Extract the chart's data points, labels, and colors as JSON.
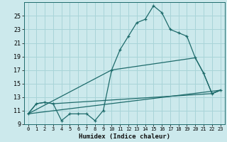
{
  "xlabel": "Humidex (Indice chaleur)",
  "bg_color": "#cce9ec",
  "grid_color": "#a8d4d8",
  "line_color": "#1e6b6b",
  "xlim": [
    -0.5,
    23.5
  ],
  "ylim": [
    9,
    27
  ],
  "yticks": [
    9,
    11,
    13,
    15,
    17,
    19,
    21,
    23,
    25
  ],
  "xticks": [
    0,
    1,
    2,
    3,
    4,
    5,
    6,
    7,
    8,
    9,
    10,
    11,
    12,
    13,
    14,
    15,
    16,
    17,
    18,
    19,
    20,
    21,
    22,
    23
  ],
  "line1_x": [
    0,
    1,
    2,
    3,
    4,
    5,
    6,
    7,
    8,
    9,
    10,
    11,
    12,
    13,
    14,
    15,
    16,
    17,
    18,
    19,
    20,
    21,
    22,
    23
  ],
  "line1_y": [
    10.5,
    12.0,
    12.2,
    12.0,
    9.5,
    10.5,
    10.5,
    10.5,
    9.5,
    11.0,
    17.0,
    20.0,
    22.0,
    24.0,
    24.5,
    26.5,
    25.5,
    23.0,
    22.5,
    22.0,
    18.8,
    16.5,
    13.5,
    14.0
  ],
  "line2_x": [
    0,
    1,
    2,
    3,
    22,
    23
  ],
  "line2_y": [
    10.5,
    12.0,
    12.2,
    12.0,
    13.5,
    14.0
  ],
  "line3_x": [
    0,
    10,
    20,
    21,
    22,
    23
  ],
  "line3_y": [
    10.5,
    17.0,
    18.8,
    16.5,
    13.5,
    14.0
  ],
  "line4_x": [
    0,
    23
  ],
  "line4_y": [
    10.5,
    14.0
  ]
}
